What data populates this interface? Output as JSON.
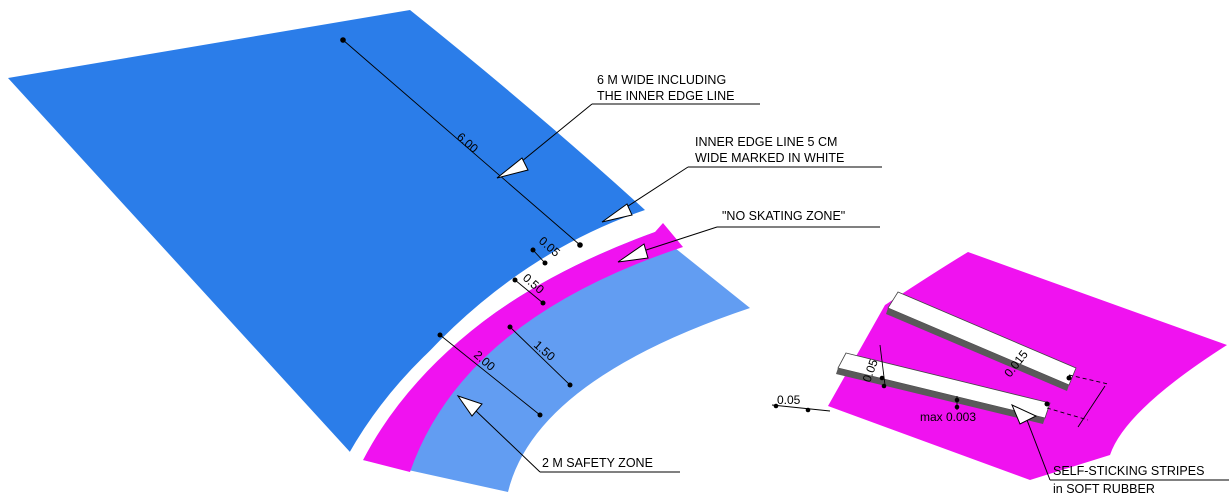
{
  "colors": {
    "track_blue": "#2b7de9",
    "safety_blue": "#629df2",
    "no_skating_magenta": "#f012f0",
    "edge_line_white": "#ffffff",
    "stripe_grey": "#5a5a5a"
  },
  "callouts": {
    "track_width": {
      "line1": "6 M WIDE INCLUDING",
      "line2": "THE INNER EDGE LINE"
    },
    "inner_edge": {
      "line1": "INNER EDGE LINE 5 CM",
      "line2": "WIDE MARKED IN WHITE"
    },
    "no_skating": {
      "line1": "\"NO SKATING ZONE\""
    },
    "safety_zone": {
      "line1": "2 M SAFETY ZONE"
    },
    "stripes": {
      "line1": "SELF-STICKING STRIPES",
      "line2": "in SOFT RUBBER"
    }
  },
  "dimensions": {
    "track": "6.00",
    "edge_line": "0.05",
    "no_skating": "0.50",
    "inner_band": "1.50",
    "safety": "2.00",
    "stripe_width": "0.015",
    "stripe_gap": "0.05",
    "stripe_edge": "0.05",
    "stripe_height": "max 0.003"
  }
}
